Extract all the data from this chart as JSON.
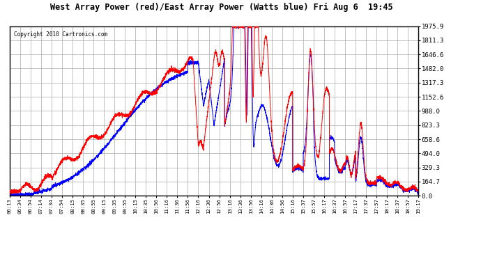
{
  "title": "West Array Power (red)/East Array Power (Watts blue) Fri Aug 6  19:45",
  "copyright": "Copyright 2010 Cartronics.com",
  "yticks": [
    0.0,
    164.7,
    329.3,
    494.0,
    658.6,
    823.3,
    988.0,
    1152.6,
    1317.3,
    1482.0,
    1646.6,
    1811.3,
    1975.9
  ],
  "ylim": [
    0.0,
    1975.9
  ],
  "bg_color": "#ffffff",
  "grid_color": "#aaaaaa",
  "red_color": "#ff0000",
  "blue_color": "#0000ff",
  "xtick_labels": [
    "06:13",
    "06:34",
    "06:54",
    "07:14",
    "07:34",
    "07:54",
    "08:15",
    "08:35",
    "08:55",
    "09:15",
    "09:35",
    "09:55",
    "10:15",
    "10:35",
    "10:56",
    "11:16",
    "11:36",
    "11:56",
    "12:16",
    "12:36",
    "12:56",
    "13:16",
    "13:36",
    "13:56",
    "14:16",
    "14:36",
    "14:56",
    "15:16",
    "15:37",
    "15:57",
    "16:17",
    "16:37",
    "16:57",
    "17:17",
    "17:37",
    "17:57",
    "18:17",
    "18:37",
    "18:57",
    "19:17"
  ]
}
